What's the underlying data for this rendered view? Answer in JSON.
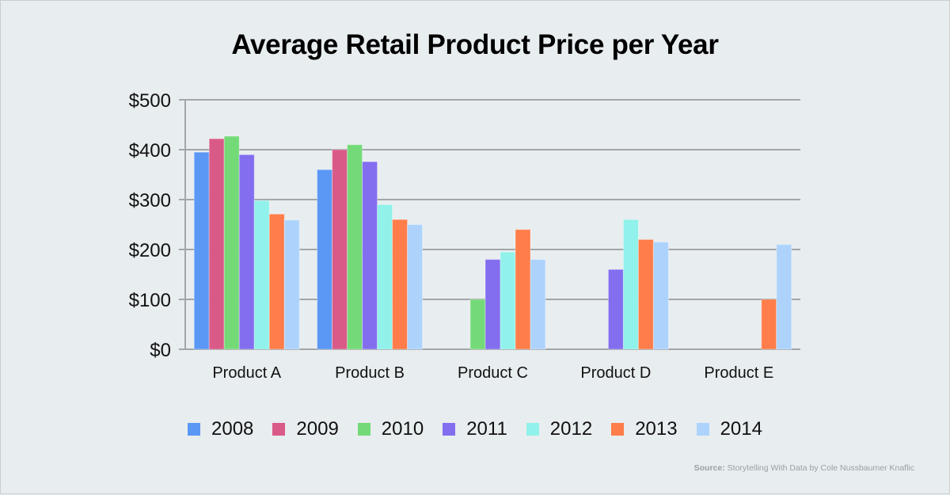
{
  "chart_data": {
    "type": "bar",
    "title": "Average Retail Product Price per Year",
    "xlabel": "",
    "ylabel": "",
    "ylim": [
      0,
      500
    ],
    "yticks": [
      0,
      100,
      200,
      300,
      400,
      500
    ],
    "ytick_labels": [
      "$0",
      "$100",
      "$200",
      "$300",
      "$400",
      "$500"
    ],
    "grid": true,
    "legend_position": "bottom",
    "categories": [
      "Product A",
      "Product B",
      "Product C",
      "Product D",
      "Product E"
    ],
    "series": [
      {
        "name": "2008",
        "color": "#5B97F5",
        "values": [
          395,
          360,
          null,
          null,
          null
        ]
      },
      {
        "name": "2009",
        "color": "#D95A87",
        "values": [
          422,
          400,
          null,
          null,
          null
        ]
      },
      {
        "name": "2010",
        "color": "#74DA78",
        "values": [
          427,
          410,
          100,
          null,
          null
        ]
      },
      {
        "name": "2011",
        "color": "#836EF0",
        "values": [
          390,
          376,
          180,
          160,
          null
        ]
      },
      {
        "name": "2012",
        "color": "#90F2EA",
        "values": [
          298,
          290,
          195,
          260,
          null
        ]
      },
      {
        "name": "2013",
        "color": "#FF7D4A",
        "values": [
          271,
          260,
          240,
          220,
          100
        ]
      },
      {
        "name": "2014",
        "color": "#ADD3FC",
        "values": [
          259,
          250,
          180,
          215,
          210
        ]
      }
    ]
  },
  "source": {
    "label": "Source:",
    "text": " Storytelling With Data by Cole Nussbaumer Knaflic"
  }
}
